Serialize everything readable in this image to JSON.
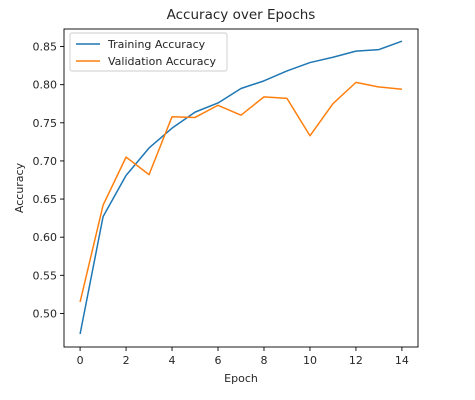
{
  "chart_data": {
    "type": "line",
    "title": "Accuracy over Epochs",
    "xlabel": "Epoch",
    "ylabel": "Accuracy",
    "x": [
      0,
      1,
      2,
      3,
      4,
      5,
      6,
      7,
      8,
      9,
      10,
      11,
      12,
      13,
      14
    ],
    "xticks": [
      "0",
      "2",
      "4",
      "6",
      "8",
      "10",
      "12",
      "14"
    ],
    "xtick_values": [
      0,
      2,
      4,
      6,
      8,
      10,
      12,
      14
    ],
    "yticks": [
      "0.50",
      "0.55",
      "0.60",
      "0.65",
      "0.70",
      "0.75",
      "0.80",
      "0.85"
    ],
    "ytick_values": [
      0.5,
      0.55,
      0.6,
      0.65,
      0.7,
      0.75,
      0.8,
      0.85
    ],
    "xlim": [
      -0.7,
      14.7
    ],
    "ylim": [
      0.456,
      0.873
    ],
    "grid": false,
    "legend_position": "top-left",
    "series": [
      {
        "name": "Training Accuracy",
        "color": "#1f77b4",
        "values": [
          0.473,
          0.627,
          0.681,
          0.717,
          0.743,
          0.764,
          0.776,
          0.795,
          0.805,
          0.818,
          0.829,
          0.836,
          0.844,
          0.846,
          0.857
        ]
      },
      {
        "name": "Validation Accuracy",
        "color": "#ff7f0e",
        "values": [
          0.515,
          0.642,
          0.705,
          0.682,
          0.758,
          0.757,
          0.773,
          0.76,
          0.784,
          0.782,
          0.733,
          0.775,
          0.803,
          0.797,
          0.794
        ]
      }
    ]
  }
}
